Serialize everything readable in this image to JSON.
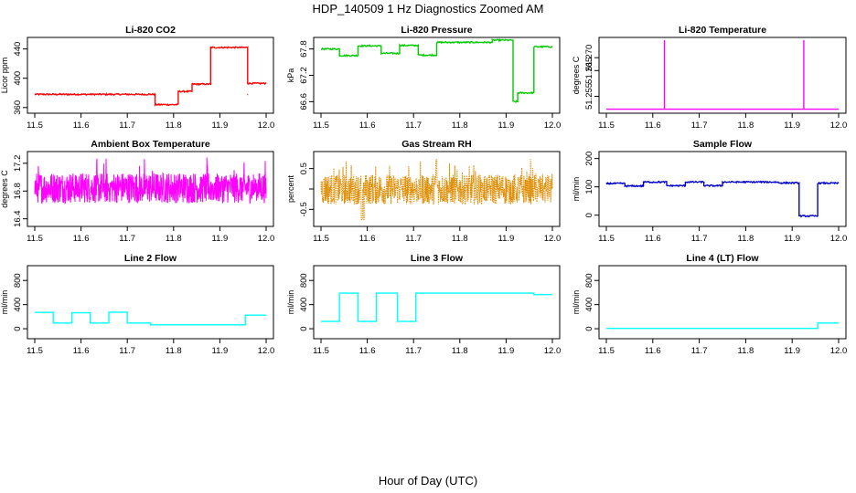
{
  "figure": {
    "title": "HDP_140509  1 Hz Diagnostics Zoomed AM",
    "shared_xlabel": "Hour of Day (UTC)"
  },
  "chart_data": [
    {
      "id": "co2",
      "type": "line",
      "title": "Li-820 CO2",
      "ylabel": "Licor ppm",
      "color": "#ff0000",
      "style": "noisy",
      "xlim": [
        11.5,
        12.0
      ],
      "ylim": [
        356,
        452
      ],
      "xticks": [
        11.5,
        11.6,
        11.7,
        11.8,
        11.9,
        12.0
      ],
      "yticks": [
        360,
        400,
        440
      ],
      "ytick_labels": [
        "360",
        "400",
        "440"
      ],
      "segments": [
        [
          11.5,
          11.76,
          378
        ],
        [
          11.76,
          11.81,
          364
        ],
        [
          11.81,
          11.84,
          382
        ],
        [
          11.84,
          11.88,
          392
        ],
        [
          11.88,
          11.96,
          442
        ],
        [
          11.96,
          12.0,
          393
        ]
      ],
      "spikes": [
        [
          11.96,
          377
        ]
      ]
    },
    {
      "id": "pressure",
      "type": "line",
      "title": "Li-820 Pressure",
      "ylabel": "kPa",
      "color": "#00cc00",
      "style": "noisy",
      "xlim": [
        11.5,
        12.0
      ],
      "ylim": [
        66.4,
        68.0
      ],
      "xticks": [
        11.5,
        11.6,
        11.7,
        11.8,
        11.9,
        12.0
      ],
      "yticks": [
        66.6,
        67.2,
        67.8
      ],
      "ytick_labels": [
        "66.6",
        "67.2",
        "67.8"
      ],
      "segments": [
        [
          11.5,
          11.54,
          67.8
        ],
        [
          11.54,
          11.58,
          67.65
        ],
        [
          11.58,
          11.63,
          67.87
        ],
        [
          11.63,
          11.67,
          67.7
        ],
        [
          11.67,
          11.71,
          67.88
        ],
        [
          11.71,
          11.75,
          67.66
        ],
        [
          11.75,
          11.87,
          67.95
        ],
        [
          11.87,
          11.915,
          68.0
        ],
        [
          11.915,
          11.925,
          66.6
        ],
        [
          11.925,
          11.96,
          66.8
        ],
        [
          11.96,
          12.0,
          67.85
        ]
      ],
      "spikes": []
    },
    {
      "id": "temperature",
      "type": "line",
      "title": "Li-820 Temperature",
      "ylabel": "degrees C",
      "color": "#ff00ff",
      "style": "flat",
      "xlim": [
        11.5,
        12.0
      ],
      "ylim": [
        51.2495,
        51.2768
      ],
      "xticks": [
        11.5,
        11.6,
        11.7,
        11.8,
        11.9,
        12.0
      ],
      "yticks": [
        51.255,
        51.265,
        51.27
      ],
      "ytick_labels": [
        "51.255",
        "51.265",
        "51.270"
      ],
      "segments": [
        [
          11.5,
          12.0,
          51.25
        ]
      ],
      "spikes": [
        [
          11.625,
          51.2768
        ],
        [
          11.925,
          51.2768
        ]
      ]
    },
    {
      "id": "ambient",
      "type": "line",
      "title": "Ambient Box Temperature",
      "ylabel": "degrees C",
      "color": "#ff00ff",
      "style": "dense",
      "xlim": [
        11.5,
        12.0
      ],
      "ylim": [
        16.33,
        17.33
      ],
      "xticks": [
        11.5,
        11.6,
        11.7,
        11.8,
        11.9,
        12.0
      ],
      "yticks": [
        16.4,
        16.8,
        17.2
      ],
      "ytick_labels": [
        "16.4",
        "16.8",
        "17.2"
      ],
      "segments": [
        [
          11.5,
          12.0,
          16.85
        ]
      ],
      "spikes": []
    },
    {
      "id": "rh",
      "type": "line",
      "title": "Gas Stream RH",
      "ylabel": "percent",
      "color": "#e08c00",
      "style": "dense",
      "xlim": [
        11.5,
        12.0
      ],
      "ylim": [
        -0.85,
        0.85
      ],
      "xticks": [
        11.5,
        11.6,
        11.7,
        11.8,
        11.9,
        12.0
      ],
      "yticks": [
        -0.5,
        0,
        0.5
      ],
      "ytick_labels": [
        "-0.5",
        "",
        "0.5"
      ],
      "segments": [
        [
          11.5,
          12.0,
          0.0
        ]
      ],
      "spikes": []
    },
    {
      "id": "sample",
      "type": "line",
      "title": "Sample Flow",
      "ylabel": "ml/min",
      "color": "#0000cc",
      "style": "noisy",
      "xlim": [
        11.5,
        12.0
      ],
      "ylim": [
        -30,
        215
      ],
      "xticks": [
        11.5,
        11.6,
        11.7,
        11.8,
        11.9,
        12.0
      ],
      "yticks": [
        0,
        100,
        200
      ],
      "ytick_labels": [
        "0",
        "100",
        "200"
      ],
      "segments": [
        [
          11.5,
          11.54,
          112
        ],
        [
          11.54,
          11.58,
          103
        ],
        [
          11.58,
          11.63,
          117
        ],
        [
          11.63,
          11.67,
          104
        ],
        [
          11.67,
          11.71,
          117
        ],
        [
          11.71,
          11.75,
          104
        ],
        [
          11.75,
          11.87,
          117
        ],
        [
          11.87,
          11.915,
          114
        ],
        [
          11.915,
          11.955,
          -3
        ],
        [
          11.955,
          12.0,
          113
        ]
      ],
      "spikes": []
    },
    {
      "id": "line2",
      "type": "line",
      "title": "Line 2 Flow",
      "ylabel": "ml/min",
      "color": "#00ffff",
      "style": "flat",
      "xlim": [
        11.5,
        12.0
      ],
      "ylim": [
        -120,
        1000
      ],
      "xticks": [
        11.5,
        11.6,
        11.7,
        11.8,
        11.9,
        12.0
      ],
      "yticks": [
        0,
        400,
        800
      ],
      "ytick_labels": [
        "0",
        "400",
        "800"
      ],
      "segments": [
        [
          11.5,
          11.54,
          270
        ],
        [
          11.54,
          11.58,
          95
        ],
        [
          11.58,
          11.62,
          265
        ],
        [
          11.62,
          11.66,
          95
        ],
        [
          11.66,
          11.7,
          275
        ],
        [
          11.7,
          11.75,
          95
        ],
        [
          11.75,
          11.955,
          65
        ],
        [
          11.955,
          12.0,
          225
        ]
      ],
      "spikes": []
    },
    {
      "id": "line3",
      "type": "line",
      "title": "Line 3 Flow",
      "ylabel": "ml/min",
      "color": "#00ffff",
      "style": "flat",
      "xlim": [
        11.5,
        12.0
      ],
      "ylim": [
        -120,
        1000
      ],
      "xticks": [
        11.5,
        11.6,
        11.7,
        11.8,
        11.9,
        12.0
      ],
      "yticks": [
        0,
        400,
        800
      ],
      "ytick_labels": [
        "0",
        "400",
        "800"
      ],
      "segments": [
        [
          11.5,
          11.54,
          120
        ],
        [
          11.54,
          11.58,
          590
        ],
        [
          11.58,
          11.62,
          120
        ],
        [
          11.62,
          11.665,
          590
        ],
        [
          11.665,
          11.705,
          120
        ],
        [
          11.705,
          11.96,
          590
        ],
        [
          11.96,
          12.0,
          565
        ]
      ],
      "spikes": []
    },
    {
      "id": "line4",
      "type": "line",
      "title": "Line 4 (LT) Flow",
      "ylabel": "ml/min",
      "color": "#00ffff",
      "style": "flat",
      "xlim": [
        11.5,
        12.0
      ],
      "ylim": [
        -120,
        1000
      ],
      "xticks": [
        11.5,
        11.6,
        11.7,
        11.8,
        11.9,
        12.0
      ],
      "yticks": [
        0,
        400,
        800
      ],
      "ytick_labels": [
        "0",
        "400",
        "800"
      ],
      "segments": [
        [
          11.5,
          11.955,
          5
        ],
        [
          11.955,
          12.0,
          95
        ]
      ],
      "spikes": []
    }
  ]
}
